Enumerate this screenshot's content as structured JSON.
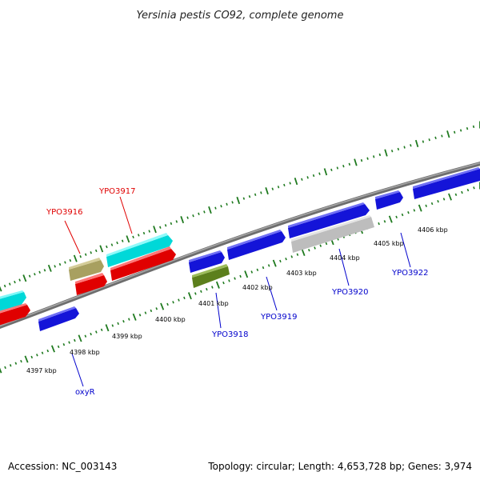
{
  "title": "Yersinia pestis CO92, complete genome",
  "footer": {
    "accession": "Accession: NC_003143",
    "summary": "Topology: circular; Length: 4,653,728 bp; Genes: 3,974"
  },
  "colors": {
    "backbone": "#808080",
    "ticks": "#1f7a1f",
    "label_red": "#e00000",
    "label_blue": "#0000cc",
    "gene_blue": "#1a1aee",
    "gene_red": "#ee1111",
    "gene_cyan": "#00e8e8",
    "gene_khaki": "#b8b070",
    "gene_olive": "#6b8e23",
    "gene_grey": "#c8c8c8"
  },
  "tick_labels": [
    "4397 kbp",
    "4398 kbp",
    "4399 kbp",
    "4400 kbp",
    "4401 kbp",
    "4402 kbp",
    "4403 kbp",
    "4404 kbp",
    "4405 kbp",
    "4406 kbp"
  ],
  "gene_labels": {
    "YPO3916": "YPO3916",
    "YPO3917": "YPO3917",
    "YPO3918": "YPO3918",
    "YPO3919": "YPO3919",
    "YPO3920": "YPO3920",
    "YPO3922": "YPO3922",
    "oxyR": "oxyR"
  }
}
